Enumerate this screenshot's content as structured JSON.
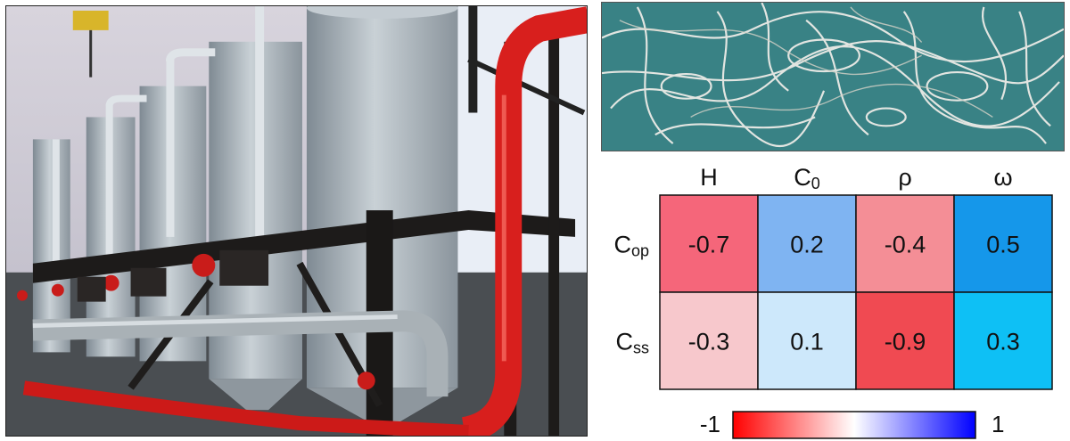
{
  "chart_data": {
    "type": "heatmap",
    "columns": [
      {
        "base": "H",
        "sub": ""
      },
      {
        "base": "C",
        "sub": "0"
      },
      {
        "base": "ρ",
        "sub": ""
      },
      {
        "base": "ω",
        "sub": ""
      }
    ],
    "rows": [
      {
        "base": "C",
        "sub": "op"
      },
      {
        "base": "C",
        "sub": "ss"
      }
    ],
    "values": [
      [
        -0.7,
        0.2,
        -0.4,
        0.5
      ],
      [
        -0.3,
        0.1,
        -0.9,
        0.3
      ]
    ],
    "labels": [
      [
        "-0.7",
        "0.2",
        "-0.4",
        "0.5"
      ],
      [
        "-0.3",
        "0.1",
        "-0.9",
        "0.3"
      ]
    ],
    "colorbar": {
      "min": -1,
      "max": 1,
      "min_label": "-1",
      "max_label": "1",
      "colors": [
        "#ff0000",
        "#ffffff",
        "#0000ff"
      ]
    },
    "cell_colors": [
      [
        "#f5667a",
        "#7fb4f2",
        "#f48e96",
        "#1597ea"
      ],
      [
        "#f7c8cc",
        "#cde8fb",
        "#f04a52",
        "#0ec0f5"
      ]
    ]
  }
}
